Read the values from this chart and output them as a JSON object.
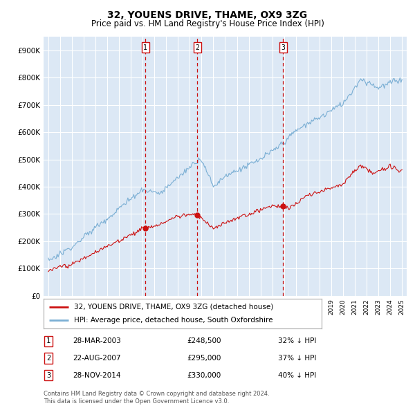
{
  "title": "32, YOUENS DRIVE, THAME, OX9 3ZG",
  "subtitle": "Price paid vs. HM Land Registry's House Price Index (HPI)",
  "background_color": "#ffffff",
  "plot_bg_color": "#dce8f5",
  "grid_color": "#ffffff",
  "ylim": [
    0,
    950000
  ],
  "yticks": [
    0,
    100000,
    200000,
    300000,
    400000,
    500000,
    600000,
    700000,
    800000,
    900000
  ],
  "ytick_labels": [
    "£0",
    "£100K",
    "£200K",
    "£300K",
    "£400K",
    "£500K",
    "£600K",
    "£700K",
    "£800K",
    "£900K"
  ],
  "hpi_color": "#7bafd4",
  "price_color": "#cc1111",
  "vline_color": "#cc1111",
  "transactions": [
    {
      "num": 1,
      "date": "28-MAR-2003",
      "price": 248500,
      "year": 2003.24,
      "pct": "32% ↓ HPI"
    },
    {
      "num": 2,
      "date": "22-AUG-2007",
      "price": 295000,
      "year": 2007.64,
      "pct": "37% ↓ HPI"
    },
    {
      "num": 3,
      "date": "28-NOV-2014",
      "price": 330000,
      "year": 2014.91,
      "pct": "40% ↓ HPI"
    }
  ],
  "legend_label_red": "32, YOUENS DRIVE, THAME, OX9 3ZG (detached house)",
  "legend_label_blue": "HPI: Average price, detached house, South Oxfordshire",
  "footnote1": "Contains HM Land Registry data © Crown copyright and database right 2024.",
  "footnote2": "This data is licensed under the Open Government Licence v3.0."
}
